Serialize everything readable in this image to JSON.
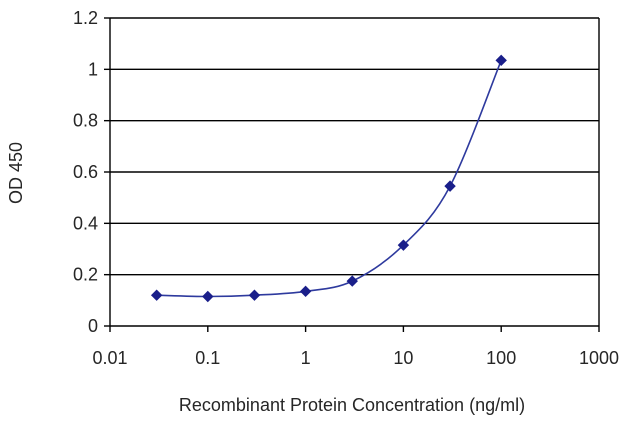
{
  "chart_data": {
    "type": "line",
    "title": "",
    "xlabel": "Recombinant Protein Concentration (ng/ml)",
    "ylabel": "OD 450",
    "xscale": "log",
    "xlim": [
      0.01,
      1000
    ],
    "ylim": [
      0,
      1.2
    ],
    "xticks": [
      0.01,
      0.1,
      1,
      10,
      100,
      1000
    ],
    "xtick_labels": [
      "0.01",
      "0.1",
      "1",
      "10",
      "100",
      "1000"
    ],
    "yticks": [
      0,
      0.2,
      0.4,
      0.6,
      0.8,
      1,
      1.2
    ],
    "ytick_labels": [
      "0",
      "0.2",
      "0.4",
      "0.6",
      "0.8",
      "1",
      "1.2"
    ],
    "grid": "horizontal",
    "legend": "none",
    "colors": {
      "series": "#2e3a9e",
      "marker": "#1a1f8a",
      "grid": "#000000",
      "axis": "#000000"
    },
    "series": [
      {
        "x": [
          0.03,
          0.1,
          0.3,
          1,
          3,
          10,
          30,
          100
        ],
        "y": [
          0.12,
          0.115,
          0.12,
          0.135,
          0.175,
          0.315,
          0.545,
          1.035
        ],
        "marker": "diamond"
      }
    ]
  }
}
